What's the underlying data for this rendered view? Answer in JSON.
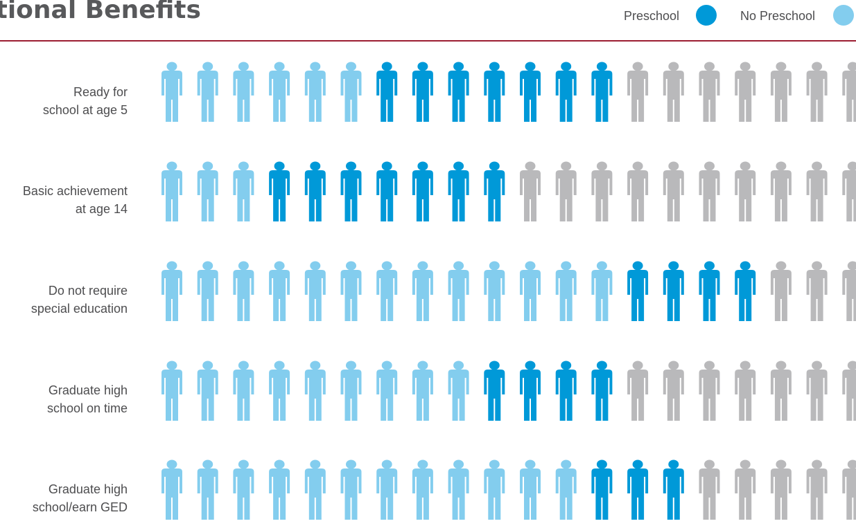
{
  "chart_data": {
    "type": "pictograph",
    "title": "cational Benefits",
    "legend": [
      "Preschool",
      "No Preschool"
    ],
    "colors": {
      "preschool": "#0099d8",
      "no_preschool": "#83cdee",
      "remainder": "#b9b9bb"
    },
    "icons_per_row": 20,
    "rows": [
      {
        "label_lines": [
          "Ready for",
          "school at age 5"
        ],
        "no_preschool": 6,
        "preschool": 13
      },
      {
        "label_lines": [
          "Basic achievement",
          "at age 14"
        ],
        "no_preschool": 3,
        "preschool": 10
      },
      {
        "label_lines": [
          "Do not require",
          "special education"
        ],
        "no_preschool": 13,
        "preschool": 17
      },
      {
        "label_lines": [
          "Graduate high",
          "school on time"
        ],
        "no_preschool": 9,
        "preschool": 13
      },
      {
        "label_lines": [
          "Graduate high",
          "school/earn GED"
        ],
        "no_preschool": 12,
        "preschool": 15
      }
    ]
  }
}
